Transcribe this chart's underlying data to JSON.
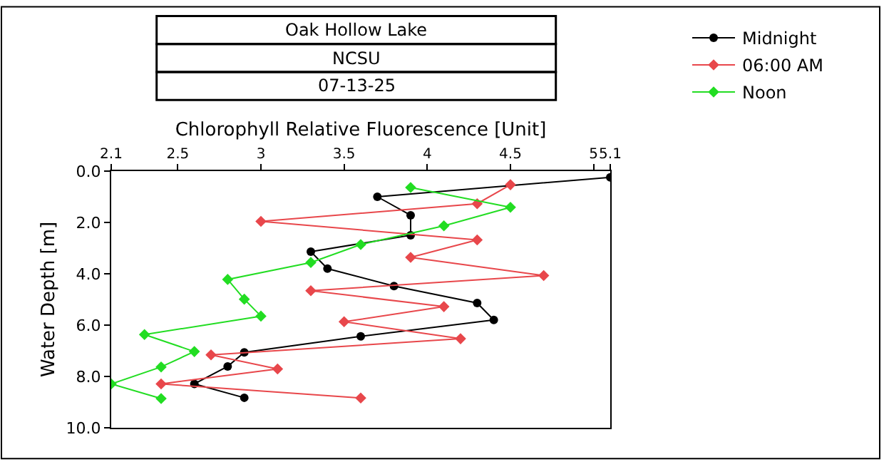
{
  "chart_data": {
    "type": "line",
    "title": "Oak Hollow Lake",
    "subtitle": "NCSU",
    "annotations": [
      "07-13-25"
    ],
    "xlabel": "Chlorophyll Relative Fluorescence [Unit]",
    "ylabel": "Water Depth [m]",
    "xlim": [
      2.1,
      5.1
    ],
    "xticks": [
      2.1,
      2.5,
      3,
      3.5,
      4,
      4.5,
      5,
      5.1
    ],
    "ylim": [
      10,
      0
    ],
    "yticks": [
      {
        "value": 0,
        "label": "0.0"
      },
      {
        "value": 2,
        "label": "2.0"
      },
      {
        "value": 4,
        "label": "4.0"
      },
      {
        "value": 6,
        "label": "6.0"
      },
      {
        "value": 8,
        "label": "8.0"
      },
      {
        "value": 10,
        "label": "10.0"
      }
    ],
    "grid": false,
    "legend": "top right",
    "line_style": "solid",
    "series": [
      {
        "name": "Midnight",
        "color": "#000000",
        "marker": "circle",
        "x": [
          5.1,
          3.7,
          3.9,
          3.9,
          3.3,
          3.4,
          3.8,
          4.3,
          4.4,
          3.6,
          2.9,
          2.8,
          2.6,
          2.9
        ],
        "values": [
          0.24,
          1.0,
          1.72,
          2.5,
          3.14,
          3.8,
          4.48,
          5.14,
          5.8,
          6.44,
          7.06,
          7.61,
          8.29,
          8.83
        ]
      },
      {
        "name": "06:00 AM",
        "color": "#e8474b",
        "marker": "diamond",
        "x": [
          4.5,
          4.3,
          3.0,
          4.3,
          3.9,
          4.7,
          3.3,
          4.1,
          3.5,
          4.2,
          2.7,
          3.1,
          2.4,
          3.6
        ],
        "values": [
          0.53,
          1.27,
          1.96,
          2.68,
          3.36,
          4.07,
          4.66,
          5.28,
          5.87,
          6.53,
          7.16,
          7.71,
          8.29,
          8.84
        ]
      },
      {
        "name": "Noon",
        "color": "#22dd22",
        "marker": "diamond",
        "x": [
          3.9,
          4.5,
          4.1,
          3.6,
          3.3,
          2.8,
          2.9,
          3.0,
          2.3,
          2.6,
          2.4,
          2.1,
          2.4
        ],
        "values": [
          0.64,
          1.41,
          2.13,
          2.86,
          3.56,
          4.22,
          4.99,
          5.65,
          6.37,
          7.03,
          7.63,
          8.29,
          8.86
        ]
      }
    ]
  }
}
